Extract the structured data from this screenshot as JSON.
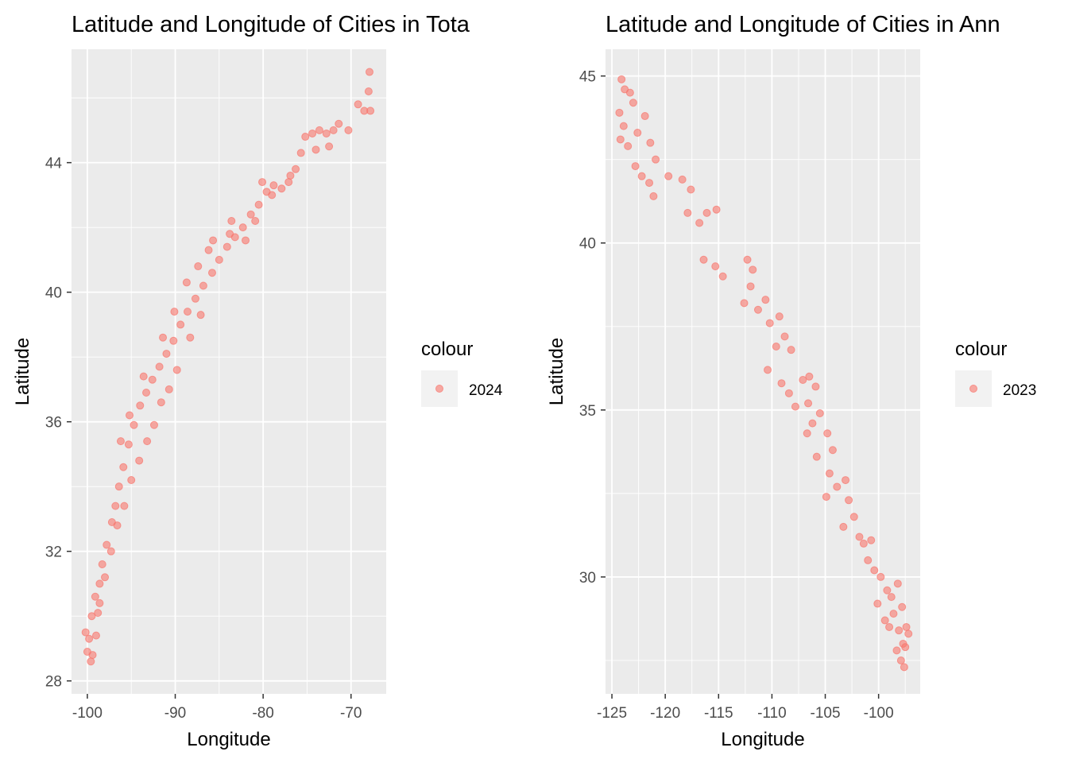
{
  "chart_data": [
    {
      "type": "scatter",
      "title": "Latitude and Longitude of Cities in Tota",
      "xlabel": "Longitude",
      "ylabel": "Latitude",
      "xlim": [
        -101.8,
        -66.0
      ],
      "ylim": [
        27.6,
        47.5
      ],
      "x_ticks": [
        -100,
        -90,
        -80,
        -70
      ],
      "x_tick_labels": [
        "-100",
        "-90",
        "-80",
        "-70"
      ],
      "y_ticks": [
        28,
        32,
        36,
        40,
        44
      ],
      "y_tick_labels": [
        "28",
        "32",
        "36",
        "40",
        "44"
      ],
      "grid": true,
      "legend": {
        "title": "colour",
        "position": "right",
        "entries": [
          "2024"
        ]
      },
      "series": [
        {
          "name": "2024",
          "color": "#F8766D",
          "opacity": 0.6,
          "points": [
            [
              -100.2,
              29.5
            ],
            [
              -99.8,
              29.3
            ],
            [
              -100.0,
              28.9
            ],
            [
              -99.6,
              28.6
            ],
            [
              -99.4,
              28.8
            ],
            [
              -99.0,
              29.4
            ],
            [
              -99.5,
              30.0
            ],
            [
              -99.1,
              30.6
            ],
            [
              -98.8,
              30.1
            ],
            [
              -98.6,
              31.0
            ],
            [
              -98.3,
              31.6
            ],
            [
              -97.8,
              32.2
            ],
            [
              -97.2,
              32.9
            ],
            [
              -96.8,
              33.4
            ],
            [
              -96.4,
              34.0
            ],
            [
              -95.9,
              34.6
            ],
            [
              -95.3,
              35.3
            ],
            [
              -94.7,
              35.9
            ],
            [
              -94.0,
              36.5
            ],
            [
              -93.3,
              36.9
            ],
            [
              -92.6,
              37.3
            ],
            [
              -91.8,
              37.7
            ],
            [
              -91.0,
              38.1
            ],
            [
              -90.2,
              38.5
            ],
            [
              -89.4,
              39.0
            ],
            [
              -88.6,
              39.4
            ],
            [
              -87.7,
              39.8
            ],
            [
              -86.8,
              40.2
            ],
            [
              -85.8,
              40.6
            ],
            [
              -85.0,
              41.0
            ],
            [
              -84.1,
              41.4
            ],
            [
              -83.2,
              41.7
            ],
            [
              -82.3,
              42.0
            ],
            [
              -81.4,
              42.4
            ],
            [
              -80.5,
              42.7
            ],
            [
              -79.6,
              43.1
            ],
            [
              -78.8,
              43.3
            ],
            [
              -77.9,
              43.2
            ],
            [
              -77.1,
              43.4
            ],
            [
              -76.3,
              43.8
            ],
            [
              -75.7,
              44.3
            ],
            [
              -75.2,
              44.8
            ],
            [
              -74.4,
              44.9
            ],
            [
              -73.6,
              45.0
            ],
            [
              -72.8,
              44.9
            ],
            [
              -72.0,
              45.0
            ],
            [
              -71.4,
              45.2
            ],
            [
              -70.3,
              45.0
            ],
            [
              -69.2,
              45.8
            ],
            [
              -68.5,
              45.6
            ],
            [
              -68.0,
              46.2
            ],
            [
              -67.9,
              46.8
            ],
            [
              -67.8,
              45.6
            ],
            [
              -72.5,
              44.5
            ],
            [
              -74.0,
              44.4
            ],
            [
              -76.9,
              43.6
            ],
            [
              -80.1,
              43.4
            ],
            [
              -83.6,
              42.2
            ],
            [
              -86.2,
              41.3
            ],
            [
              -87.1,
              39.3
            ],
            [
              -88.3,
              38.6
            ],
            [
              -89.8,
              37.6
            ],
            [
              -90.7,
              37.0
            ],
            [
              -91.6,
              36.6
            ],
            [
              -92.4,
              35.9
            ],
            [
              -93.2,
              35.4
            ],
            [
              -94.1,
              34.8
            ],
            [
              -95.0,
              34.2
            ],
            [
              -95.8,
              33.4
            ],
            [
              -96.6,
              32.8
            ],
            [
              -97.3,
              32.0
            ],
            [
              -98.0,
              31.2
            ],
            [
              -98.6,
              30.4
            ],
            [
              -96.2,
              35.4
            ],
            [
              -95.2,
              36.2
            ],
            [
              -93.6,
              37.4
            ],
            [
              -91.4,
              38.6
            ],
            [
              -90.1,
              39.4
            ],
            [
              -88.7,
              40.3
            ],
            [
              -87.4,
              40.8
            ],
            [
              -85.7,
              41.6
            ],
            [
              -83.8,
              41.8
            ],
            [
              -82.0,
              41.6
            ],
            [
              -80.9,
              42.2
            ],
            [
              -79.0,
              43.0
            ]
          ]
        }
      ]
    },
    {
      "type": "scatter",
      "title": "Latitude and Longitude of Cities in Ann",
      "xlabel": "Longitude",
      "ylabel": "Latitude",
      "xlim": [
        -125.6,
        -96.1
      ],
      "ylim": [
        26.5,
        45.8
      ],
      "x_ticks": [
        -125,
        -120,
        -115,
        -110,
        -105,
        -100
      ],
      "x_tick_labels": [
        "-125",
        "-120",
        "-115",
        "-110",
        "-105",
        "-100"
      ],
      "y_ticks": [
        30,
        35,
        40,
        45
      ],
      "y_tick_labels": [
        "30",
        "35",
        "40",
        "45"
      ],
      "grid": true,
      "legend": {
        "title": "colour",
        "position": "right",
        "entries": [
          "2023"
        ]
      },
      "series": [
        {
          "name": "2023",
          "color": "#F8766D",
          "opacity": 0.6,
          "points": [
            [
              -124.1,
              44.9
            ],
            [
              -123.8,
              44.6
            ],
            [
              -123.3,
              44.5
            ],
            [
              -123.0,
              44.2
            ],
            [
              -124.3,
              43.9
            ],
            [
              -123.9,
              43.5
            ],
            [
              -124.2,
              43.1
            ],
            [
              -123.5,
              42.9
            ],
            [
              -122.6,
              43.3
            ],
            [
              -121.9,
              43.8
            ],
            [
              -121.4,
              43.0
            ],
            [
              -120.9,
              42.5
            ],
            [
              -122.8,
              42.3
            ],
            [
              -122.2,
              42.0
            ],
            [
              -121.5,
              41.8
            ],
            [
              -121.1,
              41.4
            ],
            [
              -119.7,
              42.0
            ],
            [
              -118.4,
              41.9
            ],
            [
              -117.6,
              41.6
            ],
            [
              -117.9,
              40.9
            ],
            [
              -116.8,
              40.6
            ],
            [
              -116.1,
              40.9
            ],
            [
              -115.2,
              41.0
            ],
            [
              -116.4,
              39.5
            ],
            [
              -115.3,
              39.3
            ],
            [
              -114.6,
              39.0
            ],
            [
              -112.3,
              39.5
            ],
            [
              -111.8,
              39.2
            ],
            [
              -112.0,
              38.7
            ],
            [
              -112.6,
              38.2
            ],
            [
              -111.3,
              38.0
            ],
            [
              -110.6,
              38.3
            ],
            [
              -110.2,
              37.6
            ],
            [
              -109.3,
              37.8
            ],
            [
              -108.8,
              37.2
            ],
            [
              -108.2,
              36.8
            ],
            [
              -109.6,
              36.9
            ],
            [
              -110.4,
              36.2
            ],
            [
              -109.1,
              35.8
            ],
            [
              -108.4,
              35.5
            ],
            [
              -107.8,
              35.1
            ],
            [
              -107.1,
              35.9
            ],
            [
              -106.5,
              36.0
            ],
            [
              -105.9,
              35.7
            ],
            [
              -106.6,
              35.2
            ],
            [
              -106.2,
              34.6
            ],
            [
              -106.7,
              34.3
            ],
            [
              -105.5,
              34.9
            ],
            [
              -104.8,
              34.3
            ],
            [
              -104.3,
              33.8
            ],
            [
              -105.8,
              33.6
            ],
            [
              -104.6,
              33.1
            ],
            [
              -103.9,
              32.7
            ],
            [
              -104.9,
              32.4
            ],
            [
              -103.1,
              32.9
            ],
            [
              -102.8,
              32.3
            ],
            [
              -102.3,
              31.8
            ],
            [
              -103.3,
              31.5
            ],
            [
              -101.8,
              31.2
            ],
            [
              -101.4,
              31.0
            ],
            [
              -100.7,
              31.1
            ],
            [
              -101.0,
              30.5
            ],
            [
              -100.4,
              30.2
            ],
            [
              -99.8,
              30.0
            ],
            [
              -99.2,
              29.6
            ],
            [
              -98.8,
              29.4
            ],
            [
              -98.2,
              29.8
            ],
            [
              -97.8,
              29.1
            ],
            [
              -98.6,
              28.9
            ],
            [
              -99.4,
              28.7
            ],
            [
              -98.1,
              28.4
            ],
            [
              -97.7,
              28.0
            ],
            [
              -97.4,
              28.5
            ],
            [
              -98.3,
              27.8
            ],
            [
              -97.9,
              27.5
            ],
            [
              -97.6,
              27.3
            ],
            [
              -97.5,
              27.9
            ],
            [
              -100.1,
              29.2
            ],
            [
              -99.0,
              28.5
            ],
            [
              -97.2,
              28.3
            ]
          ]
        }
      ]
    }
  ]
}
